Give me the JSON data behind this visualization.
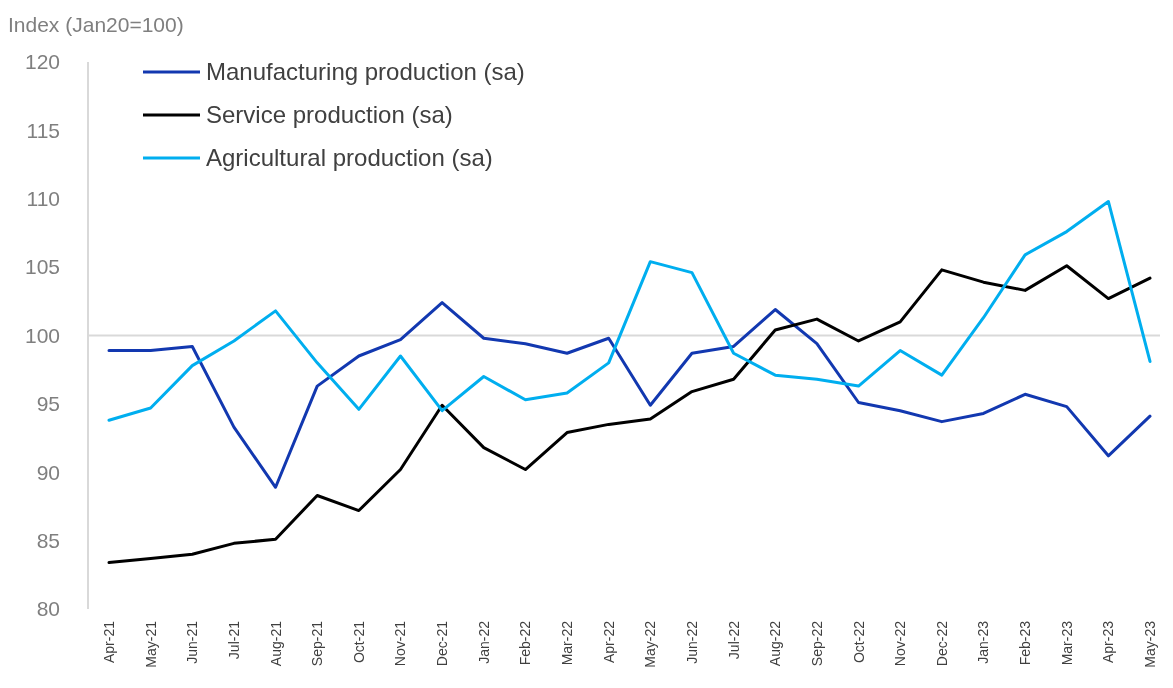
{
  "chart_data": {
    "type": "line",
    "ylabel": "Index (Jan20=100)",
    "categories": [
      "Apr-21",
      "May-21",
      "Jun-21",
      "Jul-21",
      "Aug-21",
      "Sep-21",
      "Oct-21",
      "Nov-21",
      "Dec-21",
      "Jan-22",
      "Feb-22",
      "Mar-22",
      "Apr-22",
      "May-22",
      "Jun-22",
      "Jul-22",
      "Aug-22",
      "Sep-22",
      "Oct-22",
      "Nov-22",
      "Dec-22",
      "Jan-23",
      "Feb-23",
      "Mar-23",
      "Apr-23",
      "May-23"
    ],
    "series": [
      {
        "name": "Manufacturing production (sa)",
        "color": "#1238b0",
        "values": [
          98.9,
          98.9,
          99.2,
          93.3,
          88.9,
          96.3,
          98.5,
          99.7,
          102.4,
          99.8,
          99.4,
          98.7,
          99.8,
          94.9,
          98.7,
          99.2,
          101.9,
          99.4,
          95.1,
          94.5,
          93.7,
          94.3,
          95.7,
          94.8,
          91.2,
          94.1
        ]
      },
      {
        "name": "Service production (sa)",
        "color": "#000000",
        "values": [
          83.4,
          83.7,
          84.0,
          84.8,
          85.1,
          88.3,
          87.2,
          90.2,
          94.9,
          91.8,
          90.2,
          92.9,
          93.5,
          93.9,
          95.9,
          96.8,
          100.4,
          101.2,
          99.6,
          101.0,
          104.8,
          103.9,
          103.3,
          105.1,
          102.7,
          104.2
        ]
      },
      {
        "name": "Agricultural production (sa)",
        "color": "#00aeef",
        "values": [
          93.8,
          94.7,
          97.8,
          99.6,
          101.8,
          98.0,
          94.6,
          98.5,
          94.5,
          97.0,
          95.3,
          95.8,
          98.0,
          105.4,
          104.6,
          98.7,
          97.1,
          96.8,
          96.3,
          98.9,
          97.1,
          101.3,
          105.9,
          107.6,
          109.8,
          98.1
        ]
      }
    ],
    "ylim": [
      80,
      120
    ],
    "yticks": [
      80,
      85,
      90,
      95,
      100,
      105,
      110,
      115,
      120
    ],
    "ref_lines": [
      {
        "axis": "y",
        "value": 100,
        "color": "#d9d9d9"
      }
    ],
    "legend": "top left",
    "grid": false,
    "marker": "none",
    "line_style": "solid"
  }
}
